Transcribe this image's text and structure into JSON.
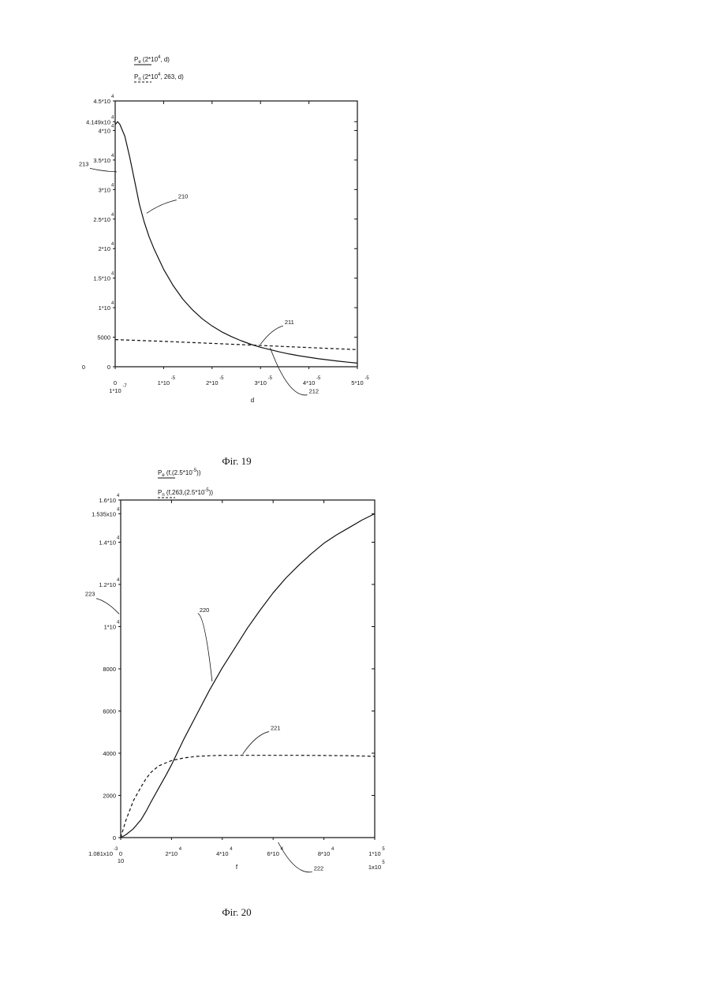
{
  "chart_data": [
    {
      "type": "line",
      "figure_caption": "Фіг. 19",
      "legend_entries": [
        {
          "name": "Pₑ (2*10⁴, d)",
          "base": "P",
          "sub": "e",
          "args": "(2*10",
          "sup": "4",
          "rest": ", d)",
          "style": "solid"
        },
        {
          "name": "Pₙ (2*10⁴, 263, d)",
          "base": "P",
          "sub": "n",
          "args": "(2*10",
          "sup": "4",
          "rest": ", 263, d)",
          "style": "dashed"
        }
      ],
      "xlabel": "d",
      "xlim": [
        0,
        5e-05
      ],
      "ylim": [
        0,
        45000
      ],
      "y_ticks": [
        {
          "base": "4.5*10",
          "sup": "4",
          "value": 45000
        },
        {
          "base": "4.149x10",
          "sup": "4",
          "value": 41490
        },
        {
          "base": "4*10",
          "sup": "4",
          "value": 40000
        },
        {
          "base": "3.5*10",
          "sup": "4",
          "value": 35000
        },
        {
          "base": "3*10",
          "sup": "4",
          "value": 30000
        },
        {
          "base": "2.5*10",
          "sup": "4",
          "value": 25000
        },
        {
          "base": "2*10",
          "sup": "4",
          "value": 20000
        },
        {
          "base": "1.5*10",
          "sup": "4",
          "value": 15000
        },
        {
          "base": "1*10",
          "sup": "4",
          "value": 10000
        },
        {
          "base": "5000",
          "sup": "",
          "value": 5000
        },
        {
          "base": "0",
          "sup": "",
          "value": 0
        }
      ],
      "y_extra_labels": [
        {
          "text": "0",
          "value": 0
        }
      ],
      "x_ticks": [
        {
          "base": "0",
          "sup": "",
          "value": 0
        },
        {
          "base": "1*10",
          "sup": "-5",
          "value": 1e-05
        },
        {
          "base": "2*10",
          "sup": "-5",
          "value": 2e-05
        },
        {
          "base": "3*10",
          "sup": "-5",
          "value": 3e-05
        },
        {
          "base": "4*10",
          "sup": "-5",
          "value": 4e-05
        },
        {
          "base": "5*10",
          "sup": "-5",
          "value": 5e-05
        }
      ],
      "x_extra_labels": [
        {
          "base": "1*10",
          "sup": "-7",
          "value": 0
        }
      ],
      "series": [
        {
          "name": "Pₑ (2*10⁴, d)",
          "label": "210",
          "style": "solid",
          "x": [
            0,
            5e-07,
            1e-06,
            2e-06,
            3e-06,
            4e-06,
            5e-06,
            6e-06,
            7e-06,
            8e-06,
            1e-05,
            1.2e-05,
            1.4e-05,
            1.6e-05,
            1.8e-05,
            2e-05,
            2.2e-05,
            2.4e-05,
            2.6e-05,
            2.8e-05,
            3e-05,
            3.2e-05,
            3.4e-05,
            3.6e-05,
            3.8e-05,
            4e-05,
            4.2e-05,
            4.4e-05,
            4.6e-05,
            4.8e-05,
            5e-05
          ],
          "y": [
            41000,
            41490,
            41000,
            39000,
            35500,
            31500,
            27500,
            24500,
            22000,
            20000,
            16500,
            13700,
            11400,
            9600,
            8100,
            6900,
            5900,
            5100,
            4400,
            3800,
            3300,
            2900,
            2500,
            2150,
            1850,
            1600,
            1350,
            1150,
            950,
            780,
            620
          ]
        },
        {
          "name": "Pₙ (2*10⁴, 263, d)",
          "label": "211",
          "style": "dashed",
          "x": [
            0,
            1e-05,
            2e-05,
            3e-05,
            4e-05,
            5e-05
          ],
          "y": [
            4600,
            4300,
            3950,
            3600,
            3250,
            2900
          ]
        }
      ],
      "annotations": [
        {
          "text": "210",
          "x": 1.3e-05,
          "y": 28500
        },
        {
          "text": "211",
          "x": 3.5e-05,
          "y": 7200
        },
        {
          "text": "212",
          "x": 4e-05,
          "y": -4500
        },
        {
          "text": "213",
          "x": -7.5e-06,
          "y": 34000
        }
      ]
    },
    {
      "type": "line",
      "figure_caption": "Фіг. 20",
      "legend_entries": [
        {
          "name": "Pₑ (f,(2.5*10⁻⁵))",
          "base": "P",
          "sub": "e",
          "args": "(f,(2.5*10",
          "sup": "-5",
          "rest": "))",
          "style": "solid"
        },
        {
          "name": "Pₙ (f,263,(2.5*10⁻⁵))",
          "base": "P",
          "sub": "n",
          "args": "(f,263,(2.5*10",
          "sup": "-5",
          "rest": "))",
          "style": "dashed"
        }
      ],
      "xlabel": "f",
      "xlim": [
        0,
        100000
      ],
      "ylim": [
        0,
        16000
      ],
      "y_ticks": [
        {
          "base": "1.6*10",
          "sup": "4",
          "value": 16000
        },
        {
          "base": "1.535x10",
          "sup": "4",
          "value": 15350
        },
        {
          "base": "1.4*10",
          "sup": "4",
          "value": 14000
        },
        {
          "base": "1.2*10",
          "sup": "4",
          "value": 12000
        },
        {
          "base": "1*10",
          "sup": "4",
          "value": 10000
        },
        {
          "base": "8000",
          "sup": "",
          "value": 8000
        },
        {
          "base": "6000",
          "sup": "",
          "value": 6000
        },
        {
          "base": "4000",
          "sup": "",
          "value": 4000
        },
        {
          "base": "2000",
          "sup": "",
          "value": 2000
        },
        {
          "base": "0",
          "sup": "",
          "value": 0
        }
      ],
      "y_extra_labels": [
        {
          "base": "1.081x10",
          "sup": "-3",
          "value": 0
        }
      ],
      "x_ticks": [
        {
          "base": "0",
          "sup": "",
          "value": 0
        },
        {
          "base": "2*10",
          "sup": "4",
          "value": 20000
        },
        {
          "base": "4*10",
          "sup": "4",
          "value": 40000
        },
        {
          "base": "6*10",
          "sup": "4",
          "value": 60000
        },
        {
          "base": "8*10",
          "sup": "4",
          "value": 80000
        },
        {
          "base": "1*10",
          "sup": "5",
          "value": 100000
        }
      ],
      "x_extra_labels": [
        {
          "base": "10",
          "sup": "",
          "value": 0
        },
        {
          "base": "1x10",
          "sup": "5",
          "value": 100000
        }
      ],
      "series": [
        {
          "name": "Pₑ (f,(2.5*10⁻⁵))",
          "label": "220",
          "style": "solid",
          "x": [
            0,
            2000,
            5000,
            8000,
            10000,
            12000,
            15000,
            18000,
            20000,
            25000,
            30000,
            35000,
            40000,
            45000,
            50000,
            55000,
            60000,
            65000,
            70000,
            75000,
            80000,
            85000,
            90000,
            95000,
            100000
          ],
          "y": [
            0,
            130,
            420,
            850,
            1250,
            1700,
            2350,
            3000,
            3450,
            4700,
            5850,
            7000,
            8050,
            9000,
            9950,
            10800,
            11600,
            12300,
            12900,
            13450,
            13950,
            14350,
            14700,
            15050,
            15350
          ]
        },
        {
          "name": "Pₙ (f,263,(2.5*10⁻⁵))",
          "label": "221",
          "style": "dashed",
          "x": [
            0,
            2000,
            5000,
            8000,
            10000,
            12000,
            15000,
            18000,
            20000,
            25000,
            30000,
            35000,
            40000,
            50000,
            60000,
            70000,
            80000,
            90000,
            100000
          ],
          "y": [
            0,
            800,
            1750,
            2400,
            2800,
            3100,
            3400,
            3550,
            3650,
            3780,
            3850,
            3880,
            3900,
            3900,
            3900,
            3900,
            3890,
            3880,
            3850
          ]
        }
      ],
      "annotations": [
        {
          "text": "220",
          "x": 31000,
          "y": 10700
        },
        {
          "text": "221",
          "x": 59000,
          "y": 5100
        },
        {
          "text": "222",
          "x": 76000,
          "y": -1550
        },
        {
          "text": "223",
          "x": -14000,
          "y": 11450
        }
      ]
    }
  ]
}
